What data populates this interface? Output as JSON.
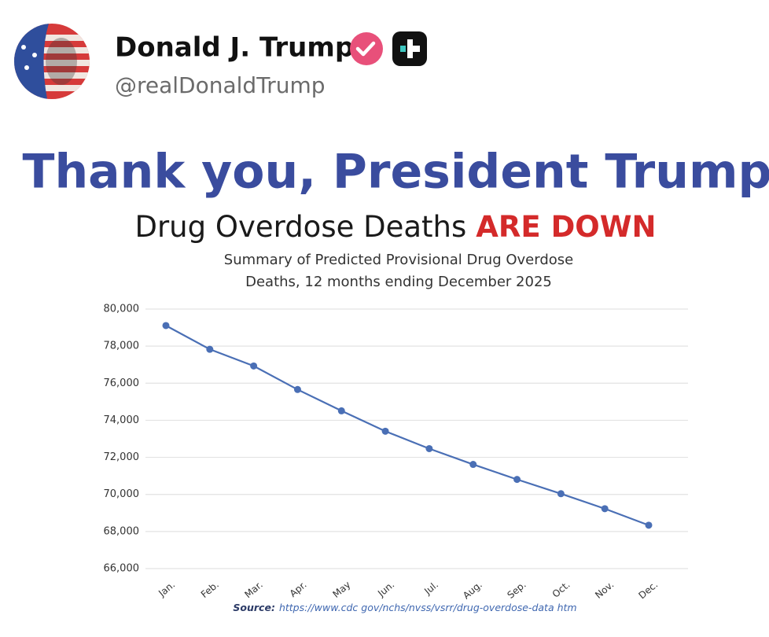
{
  "post": {
    "author_name": "Donald J. Trump",
    "handle": "@realDonaldTrump"
  },
  "chart_data": {
    "type": "line",
    "headline": "Thank you, President Trump",
    "headline_2": "Drug Overdose Deaths",
    "headline_2_emphasis": "ARE DOWN",
    "title": [
      "Summary of Predicted Provisional Drug Overdose",
      "Deaths, 12 months ending December 2025"
    ],
    "categories": [
      "Jan.",
      "Feb.",
      "Mar.",
      "Apr.",
      "May",
      "Jun.",
      "Jul.",
      "Aug.",
      "Sep.",
      "Oct.",
      "Nov.",
      "Dec."
    ],
    "series": [
      {
        "name": "Predicted provisional drug overdose deaths",
        "color": "#4a6fb5",
        "values": [
          79110,
          77830,
          76930,
          75660,
          74510,
          73410,
          72470,
          71620,
          70810,
          70040,
          69230,
          68340
        ]
      }
    ],
    "ylim": [
      66000,
      80000
    ],
    "yticks": [
      {
        "value": 66000,
        "label": "66,000"
      },
      {
        "value": 68000,
        "label": "68,000"
      },
      {
        "value": 70000,
        "label": "70,000"
      },
      {
        "value": 72000,
        "label": "72,000"
      },
      {
        "value": 74000,
        "label": "74,000"
      },
      {
        "value": 76000,
        "label": "76,000"
      },
      {
        "value": 78000,
        "label": "78,000"
      },
      {
        "value": 80000,
        "label": "80,000"
      }
    ],
    "grid": true,
    "source_label": "Source:",
    "source": "https://www.cdc gov/nchs/nvss/vsrr/drug-overdose-data htm"
  }
}
